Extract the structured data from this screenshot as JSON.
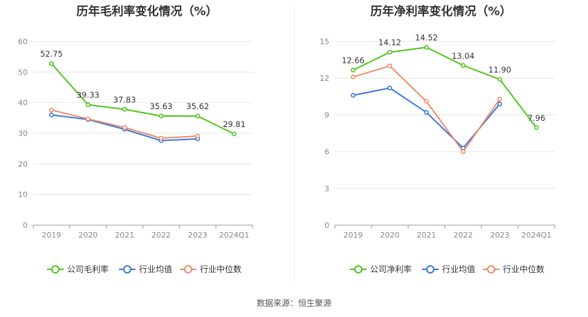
{
  "source": "数据来源：恒生聚源",
  "chart_data": [
    {
      "type": "line",
      "title": "历年毛利率变化情况（%）",
      "categories": [
        "2019",
        "2020",
        "2021",
        "2022",
        "2023",
        "2024Q1"
      ],
      "ylim": [
        0,
        60
      ],
      "yticks": [
        0,
        10,
        20,
        30,
        40,
        50,
        60
      ],
      "grid": true,
      "legend_position": "bottom",
      "series": [
        {
          "name": "公司毛利率",
          "color": "#52c41a",
          "values": [
            52.75,
            39.33,
            37.83,
            35.63,
            35.62,
            29.81
          ],
          "labels": [
            "52.75",
            "39.33",
            "37.83",
            "35.63",
            "35.62",
            "29.81"
          ]
        },
        {
          "name": "行业均值",
          "color": "#3a78d8",
          "values": [
            36.0,
            34.5,
            31.3,
            27.6,
            28.2,
            null
          ]
        },
        {
          "name": "行业中位数",
          "color": "#f08c6a",
          "values": [
            37.6,
            34.7,
            31.9,
            28.4,
            29.1,
            null
          ]
        }
      ]
    },
    {
      "type": "line",
      "title": "历年净利率变化情况（%）",
      "categories": [
        "2019",
        "2020",
        "2021",
        "2022",
        "2023",
        "2024Q1"
      ],
      "ylim": [
        0,
        15
      ],
      "yticks": [
        0,
        3,
        6,
        9,
        12,
        15
      ],
      "grid": true,
      "legend_position": "bottom",
      "series": [
        {
          "name": "公司净利率",
          "color": "#52c41a",
          "values": [
            12.66,
            14.12,
            14.52,
            13.04,
            11.9,
            7.96
          ],
          "labels": [
            "12.66",
            "14.12",
            "14.52",
            "13.04",
            "11.90",
            "7.96"
          ]
        },
        {
          "name": "行业均值",
          "color": "#3a78d8",
          "values": [
            10.6,
            11.2,
            9.2,
            6.3,
            9.9,
            null
          ]
        },
        {
          "name": "行业中位数",
          "color": "#f08c6a",
          "values": [
            12.1,
            13.0,
            10.1,
            6.0,
            10.3,
            null
          ]
        }
      ]
    }
  ]
}
